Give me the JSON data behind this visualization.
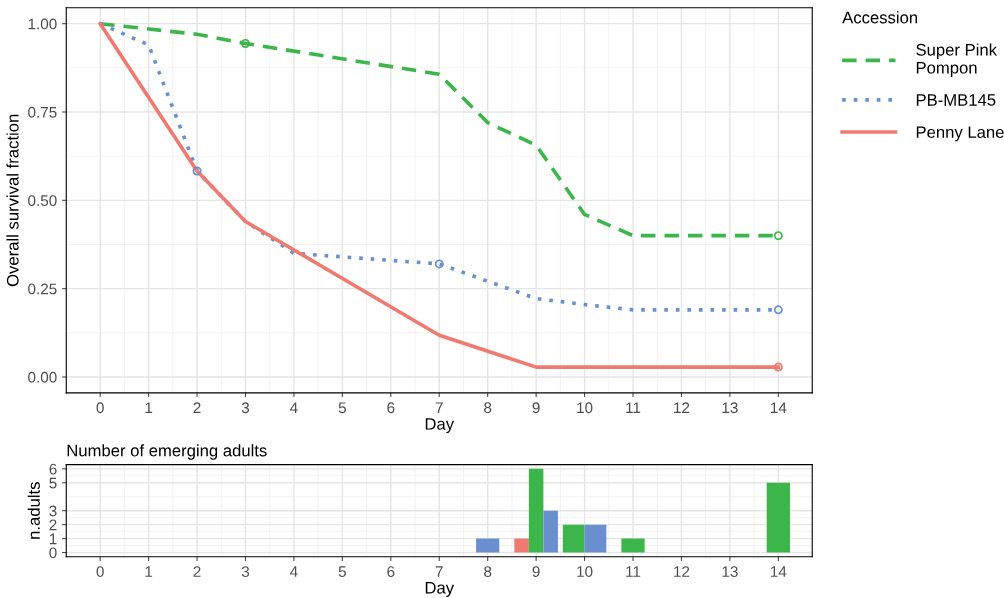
{
  "chart_data": [
    {
      "type": "line",
      "xlabel": "Day",
      "ylabel": "Overall survival fraction",
      "legend_title": "Accession",
      "legend": "right",
      "grid": true,
      "xlim": [
        -0.7,
        14.7
      ],
      "xticks": [
        0,
        1,
        2,
        3,
        4,
        5,
        6,
        7,
        8,
        9,
        10,
        11,
        12,
        13,
        14
      ],
      "ylim": [
        -0.045,
        1.045
      ],
      "yticks": [
        {
          "value": 0,
          "label": "0.00"
        },
        {
          "value": 0.25,
          "label": "0.25"
        },
        {
          "value": 0.5,
          "label": "0.50"
        },
        {
          "value": 0.75,
          "label": "0.75"
        },
        {
          "value": 1,
          "label": "1.00"
        }
      ],
      "series": [
        {
          "name": "Super Pink Pompon",
          "color": "#3cb54a",
          "line_style": "dashed",
          "x": [
            0,
            2,
            3,
            7,
            8,
            9,
            10,
            11,
            14
          ],
          "values": [
            1,
            0.97,
            0.944,
            0.857,
            0.72,
            0.656,
            0.46,
            0.4,
            0.4
          ]
        },
        {
          "name": "PB-MB145",
          "color": "#6a8fcf",
          "line_style": "dotted",
          "x": [
            0,
            1,
            2,
            3,
            4,
            5,
            7,
            9,
            10,
            11,
            14
          ],
          "values": [
            1,
            0.94,
            0.583,
            0.44,
            0.35,
            0.34,
            0.32,
            0.222,
            0.205,
            0.19,
            0.19
          ]
        },
        {
          "name": "Penny Lane",
          "color": "#f07a70",
          "line_style": "solid",
          "x": [
            0,
            2,
            3,
            7,
            9,
            14
          ],
          "values": [
            1,
            0.583,
            0.44,
            0.118,
            0.028,
            0.028
          ]
        },
        {
          "type": "scatter",
          "marker": "circle",
          "color": "#3cb54a",
          "x": [
            3,
            14
          ],
          "values": [
            0.944,
            0.4
          ]
        },
        {
          "type": "scatter",
          "marker": "circle",
          "color": "#6a8fcf",
          "x": [
            2,
            7,
            14
          ],
          "values": [
            0.583,
            0.32,
            0.19
          ]
        },
        {
          "type": "scatter",
          "marker": "circle",
          "color": "#f07a70",
          "x": [
            14
          ],
          "values": [
            0.028
          ]
        }
      ]
    },
    {
      "type": "bar",
      "title": "Number of emerging adults",
      "xlabel": "Day",
      "ylabel": "n.adults",
      "grid": true,
      "xlim": [
        -0.7,
        14.7
      ],
      "xticks": [
        0,
        1,
        2,
        3,
        4,
        5,
        6,
        7,
        8,
        9,
        10,
        11,
        12,
        13,
        14
      ],
      "ylim": [
        -0.3,
        6.3
      ],
      "yticks": [
        0,
        1,
        2,
        3,
        5,
        6
      ],
      "series": [
        {
          "color": "#f07a70",
          "x": [
            9
          ],
          "values": [
            1
          ]
        },
        {
          "color": "#3cb54a",
          "x": [
            9,
            10,
            11,
            14
          ],
          "values": [
            6,
            2,
            1,
            5
          ]
        },
        {
          "color": "#6a8fcf",
          "x": [
            8,
            9,
            10
          ],
          "values": [
            1,
            3,
            2
          ]
        }
      ]
    }
  ]
}
